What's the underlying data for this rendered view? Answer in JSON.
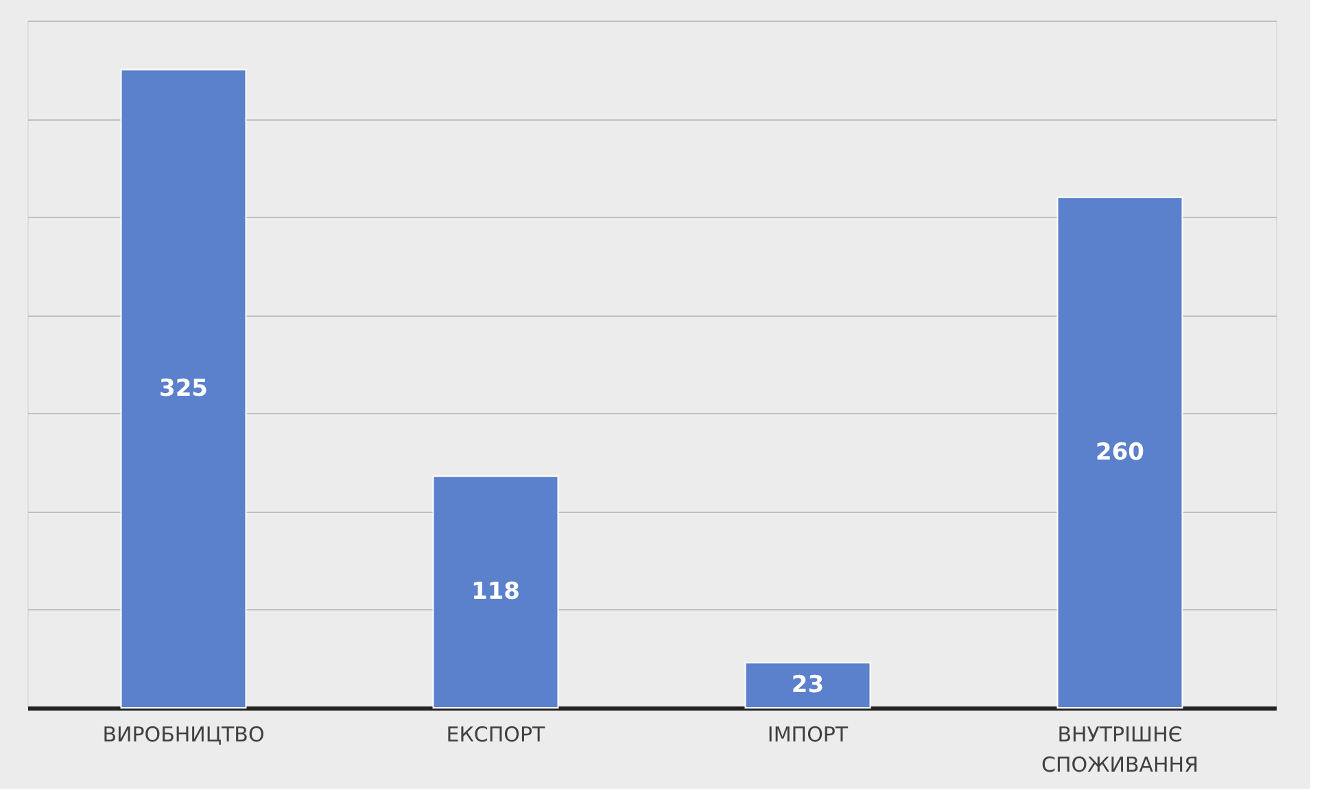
{
  "chart_data": {
    "type": "bar",
    "categories": [
      "ВИРОБНИЦТВО",
      "ЕКСПОРТ",
      "ІМПОРТ",
      "ВНУТРІШНЄ СПОЖИВАННЯ"
    ],
    "values": [
      325,
      118,
      23,
      260
    ],
    "color": "#5b80cc",
    "ylim": [
      0,
      350
    ],
    "yticks": [
      0,
      50,
      100,
      150,
      200,
      250,
      300,
      350
    ],
    "grid": "y",
    "tick_labels": "x",
    "data_labels": true
  }
}
